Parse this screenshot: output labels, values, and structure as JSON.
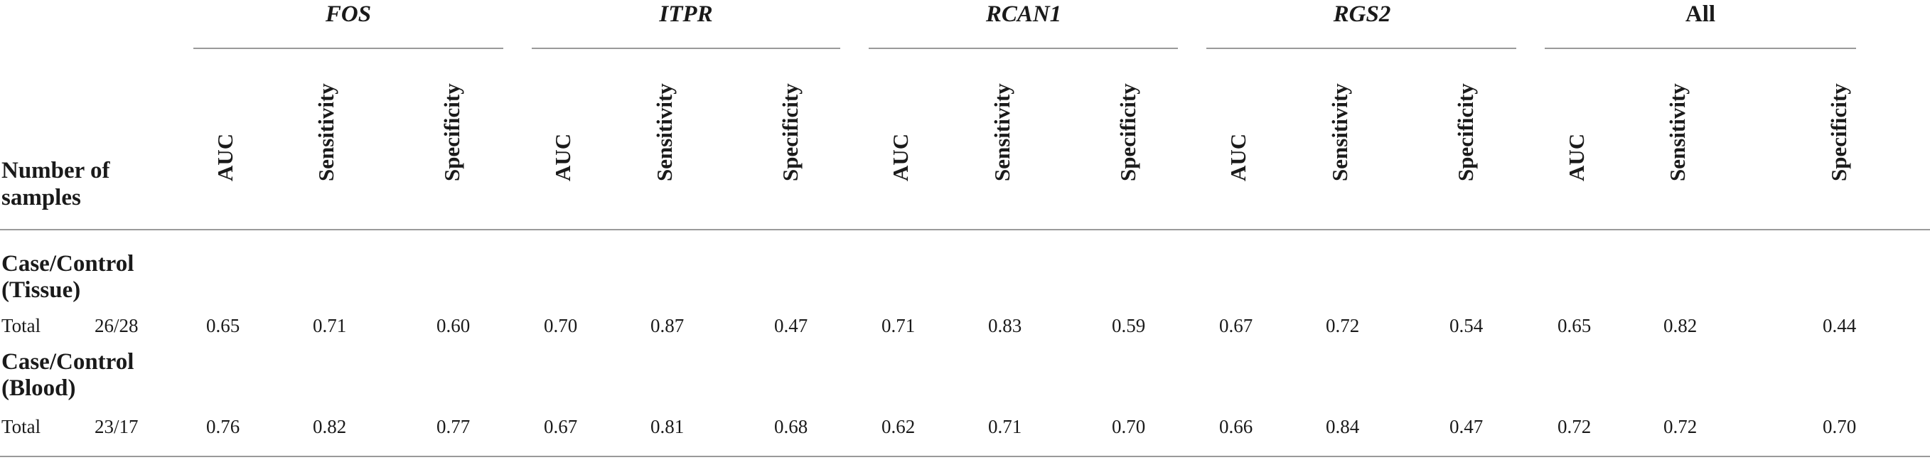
{
  "genes": [
    "FOS",
    "ITPR",
    "RCAN1",
    "RGS2",
    "All"
  ],
  "metrics": [
    "AUC",
    "Sensitivity",
    "Specificity"
  ],
  "number_of_samples_label_line1": "Number of",
  "number_of_samples_label_line2": "samples",
  "sections": [
    {
      "title_line1": "Case/Control",
      "title_line2": "(Tissue)",
      "row_label": "Total",
      "samples": "26/28",
      "values": [
        "0.65",
        "0.71",
        "0.60",
        "0.70",
        "0.87",
        "0.47",
        "0.71",
        "0.83",
        "0.59",
        "0.67",
        "0.72",
        "0.54",
        "0.65",
        "0.82",
        "0.44"
      ]
    },
    {
      "title_line1": "Case/Control",
      "title_line2": "(Blood)",
      "row_label": "Total",
      "samples": "23/17",
      "values": [
        "0.76",
        "0.82",
        "0.77",
        "0.67",
        "0.81",
        "0.68",
        "0.62",
        "0.71",
        "0.70",
        "0.66",
        "0.84",
        "0.47",
        "0.72",
        "0.72",
        "0.70"
      ]
    }
  ]
}
